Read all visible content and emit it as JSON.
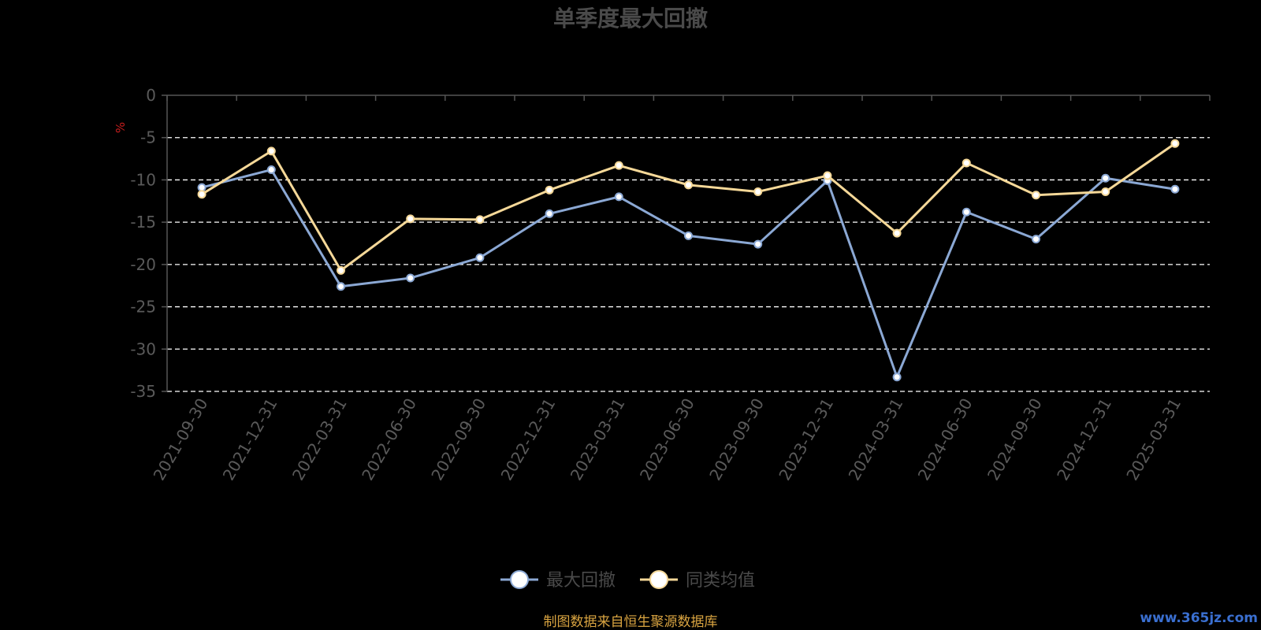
{
  "chart_data": {
    "type": "line",
    "title": "单季度最大回撤",
    "ylabel": "%",
    "xlabel": "",
    "ylim": [
      -35,
      0
    ],
    "yticks": [
      0,
      -5,
      -10,
      -15,
      -20,
      -25,
      -30,
      -35
    ],
    "grid": true,
    "legend_position": "bottom",
    "categories": [
      "2021-09-30",
      "2021-12-31",
      "2022-03-31",
      "2022-06-30",
      "2022-09-30",
      "2022-12-31",
      "2023-03-31",
      "2023-06-30",
      "2023-09-30",
      "2023-12-31",
      "2024-03-31",
      "2024-06-30",
      "2024-09-30",
      "2024-12-31",
      "2025-03-31"
    ],
    "series": [
      {
        "name": "最大回撤",
        "color": "#8ba8d4",
        "values": [
          -10.9,
          -8.8,
          -22.6,
          -21.6,
          -19.2,
          -14.0,
          -12.0,
          -16.6,
          -17.6,
          -10.1,
          -33.3,
          -13.8,
          -17.0,
          -9.8,
          -11.1
        ]
      },
      {
        "name": "同类均值",
        "color": "#f5d898",
        "values": [
          -11.7,
          -6.6,
          -20.7,
          -14.6,
          -14.7,
          -11.2,
          -8.3,
          -10.6,
          -11.4,
          -9.5,
          -16.3,
          -8.0,
          -11.8,
          -11.4,
          -5.7
        ]
      }
    ]
  },
  "source_text": "制图数据来自恒生聚源数据库",
  "watermark": "www.365jz.com",
  "colors": {
    "background": "#000000",
    "grid": "#ffffff",
    "axis": "#555555"
  }
}
